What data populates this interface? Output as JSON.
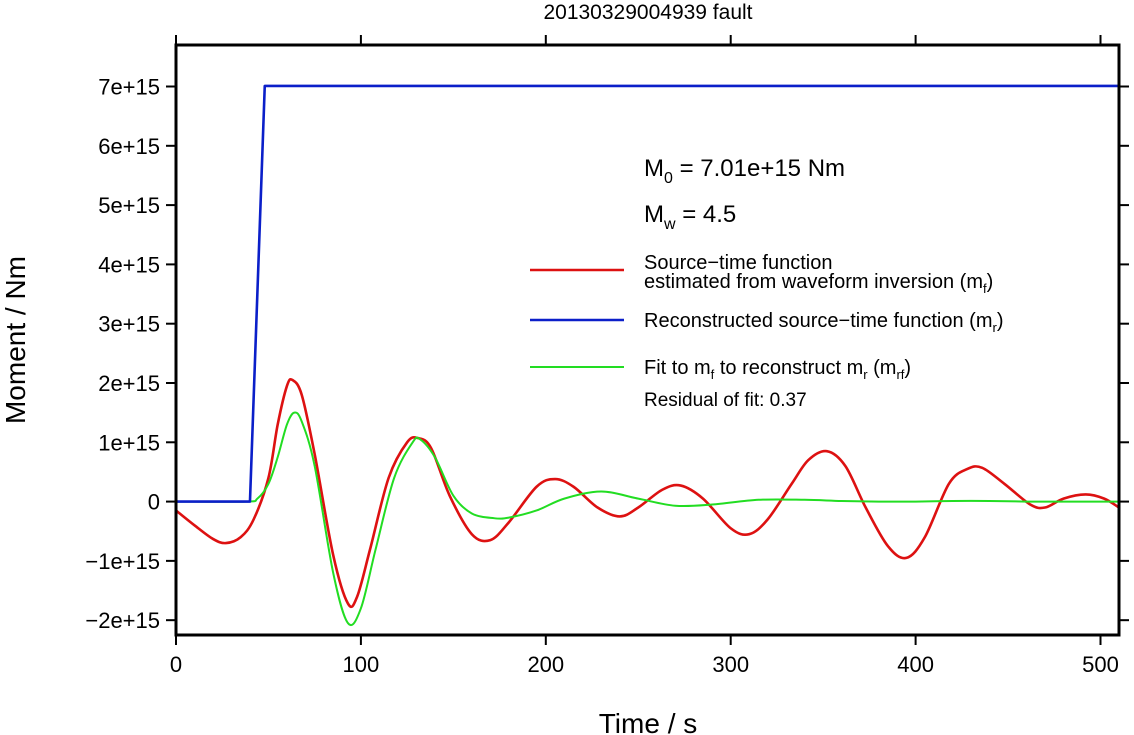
{
  "chart_data": {
    "type": "line",
    "title": "20130329004939 fault",
    "xlabel": "Time / s",
    "ylabel": "Moment / Nm",
    "xlim": [
      0,
      510
    ],
    "ylim": [
      -2250000000000000.0,
      7700000000000000.0
    ],
    "xticks": [
      0,
      100,
      200,
      300,
      400,
      500
    ],
    "xtick_labels": [
      "0",
      "100",
      "200",
      "300",
      "400",
      "500"
    ],
    "yticks": [
      -2000000000000000.0,
      -1000000000000000.0,
      0,
      1000000000000000.0,
      2000000000000000.0,
      3000000000000000.0,
      4000000000000000.0,
      5000000000000000.0,
      6000000000000000.0,
      7000000000000000.0
    ],
    "ytick_labels": [
      "−2e+15",
      "−1e+15",
      "0",
      "1e+15",
      "2e+15",
      "3e+15",
      "4e+15",
      "5e+15",
      "6e+15",
      "7e+15"
    ],
    "grid": false,
    "legend_position": "right",
    "annotations": {
      "m0": {
        "main": "M",
        "sub": "0",
        "rest": " = 7.01e+15 Nm"
      },
      "mw": {
        "main": "M",
        "sub": "w",
        "rest": " = 4.5"
      },
      "residual": "Residual of fit: 0.37"
    },
    "legend": [
      {
        "color": "#dd1111",
        "line1": "Source−time function",
        "line2": "estimated from waveform inversion (m",
        "sub": "f",
        "tail": ")"
      },
      {
        "color": "#0b1fc9",
        "line1": "Reconstructed source−time function (m",
        "sub": "r",
        "tail": ")"
      },
      {
        "color": "#22dd22",
        "line1": "Fit to m",
        "sub": "f",
        "mid": " to reconstruct m",
        "sub2": "r",
        "mid2": " (m",
        "sub3": "rf",
        "tail": ")"
      }
    ],
    "series": [
      {
        "name": "Source−time function estimated from waveform inversion (mf)",
        "color": "#dd1111",
        "x": [
          0,
          10,
          20,
          27,
          35,
          42,
          50,
          55,
          60,
          63,
          68,
          75,
          85,
          93,
          98,
          105,
          115,
          125,
          131,
          138,
          148,
          160,
          170,
          180,
          195,
          205,
          215,
          228,
          240,
          250,
          263,
          273,
          285,
          300,
          310,
          320,
          333,
          342,
          352,
          362,
          373,
          385,
          395,
          405,
          418,
          428,
          436,
          448,
          462,
          470,
          480,
          492,
          502,
          510
        ],
        "y": [
          -150000000000000.0,
          -400000000000000.0,
          -630000000000000.0,
          -700000000000000.0,
          -600000000000000.0,
          -300000000000000.0,
          400000000000000.0,
          1300000000000000.0,
          1950000000000000.0,
          2050000000000000.0,
          1800000000000000.0,
          800000000000000.0,
          -900000000000000.0,
          -1720000000000000.0,
          -1600000000000000.0,
          -800000000000000.0,
          400000000000000.0,
          1000000000000000.0,
          1070000000000000.0,
          900000000000000.0,
          100000000000000.0,
          -550000000000000.0,
          -650000000000000.0,
          -350000000000000.0,
          250000000000000.0,
          380000000000000.0,
          250000000000000.0,
          -100000000000000.0,
          -250000000000000.0,
          -100000000000000.0,
          200000000000000.0,
          270000000000000.0,
          50000000000000.0,
          -450000000000000.0,
          -550000000000000.0,
          -300000000000000.0,
          300000000000000.0,
          700000000000000.0,
          850000000000000.0,
          600000000000000.0,
          -100000000000000.0,
          -750000000000000.0,
          -950000000000000.0,
          -600000000000000.0,
          300000000000000.0,
          550000000000000.0,
          570000000000000.0,
          300000000000000.0,
          -50000000000000.0,
          -100000000000000.0,
          50000000000000.0,
          120000000000000.0,
          50000000000000.0,
          -100000000000000.0
        ]
      },
      {
        "name": "Reconstructed source−time function (mr)",
        "color": "#0b1fc9",
        "x": [
          0,
          40,
          48,
          510
        ],
        "y": [
          0,
          0,
          7010000000000000.0,
          7010000000000000.0
        ]
      },
      {
        "name": "Fit to mf to reconstruct mr (mrf)",
        "color": "#22dd22",
        "x": [
          0,
          38,
          44,
          50,
          55,
          60,
          64,
          68,
          75,
          85,
          93,
          100,
          108,
          118,
          128,
          132,
          140,
          150,
          160,
          172,
          180,
          195,
          210,
          230,
          250,
          270,
          290,
          315,
          340,
          360,
          380,
          400,
          420,
          440,
          460,
          480,
          500,
          510
        ],
        "y": [
          0,
          0,
          50000000000000.0,
          300000000000000.0,
          750000000000000.0,
          1300000000000000.0,
          1500000000000000.0,
          1350000000000000.0,
          600000000000000.0,
          -1200000000000000.0,
          -2050000000000000.0,
          -1800000000000000.0,
          -800000000000000.0,
          400000000000000.0,
          1000000000000000.0,
          1050000000000000.0,
          750000000000000.0,
          100000000000000.0,
          -200000000000000.0,
          -280000000000000.0,
          -270000000000000.0,
          -150000000000000.0,
          50000000000000.0,
          170000000000000.0,
          50000000000000.0,
          -70000000000000.0,
          -50000000000000.0,
          30000000000000.0,
          30000000000000.0,
          10000000000000.0,
          0.0,
          0.0,
          10000000000000.0,
          10000000000000.0,
          0.0,
          0.0,
          0.0,
          0.0
        ]
      }
    ]
  }
}
